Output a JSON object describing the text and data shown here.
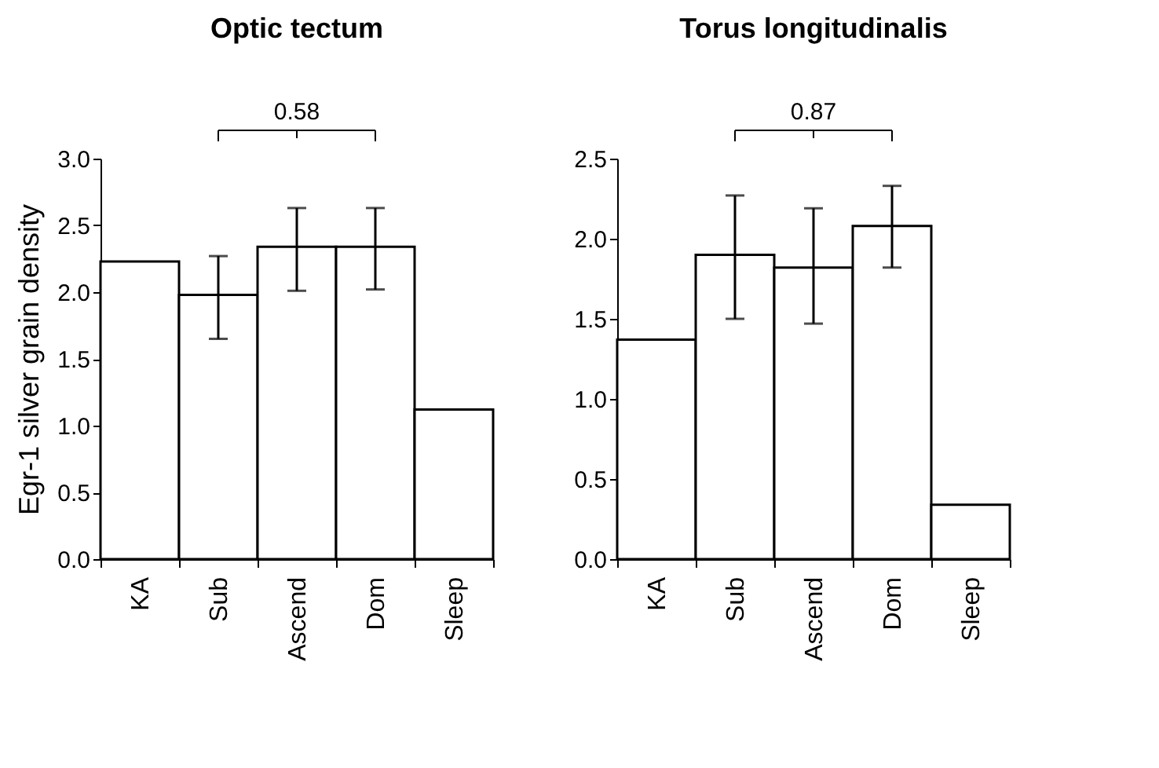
{
  "chart_data": [
    {
      "type": "bar",
      "title": "Optic tectum",
      "ylabel": "Egr-1 silver grain density",
      "categories": [
        "KA",
        "Sub",
        "Ascend",
        "Dom",
        "Sleep"
      ],
      "values": [
        2.23,
        1.98,
        2.34,
        2.34,
        1.12
      ],
      "errors": [
        null,
        [
          1.65,
          2.27
        ],
        [
          2.01,
          2.63
        ],
        [
          2.02,
          2.63
        ],
        null
      ],
      "color": "#ffffff",
      "ylim": [
        0,
        3
      ],
      "yticks": [
        {
          "value": 0,
          "label": "0.0"
        },
        0.5,
        {
          "value": 1,
          "label": "1.0"
        },
        1.5,
        {
          "value": 2,
          "label": "2.0"
        },
        2.5,
        {
          "value": 3,
          "label": "3.0"
        }
      ],
      "grid": false,
      "annotations": [
        "0.58"
      ]
    },
    {
      "type": "bar",
      "title": "Torus longitudinalis",
      "categories": [
        "KA",
        "Sub",
        "Ascend",
        "Dom",
        "Sleep"
      ],
      "values": [
        1.37,
        1.9,
        1.82,
        2.08,
        0.34
      ],
      "errors": [
        null,
        [
          1.5,
          2.27
        ],
        [
          1.47,
          2.19
        ],
        [
          1.82,
          2.33
        ],
        null
      ],
      "color": "#ffffff",
      "ylim": [
        0,
        2.5
      ],
      "yticks": [
        {
          "value": 0,
          "label": "0.0"
        },
        0.5,
        {
          "value": 1,
          "label": "1.0"
        },
        1.5,
        {
          "value": 2,
          "label": "2.0"
        },
        2.5
      ],
      "grid": false,
      "annotations": [
        "0.87"
      ]
    }
  ]
}
